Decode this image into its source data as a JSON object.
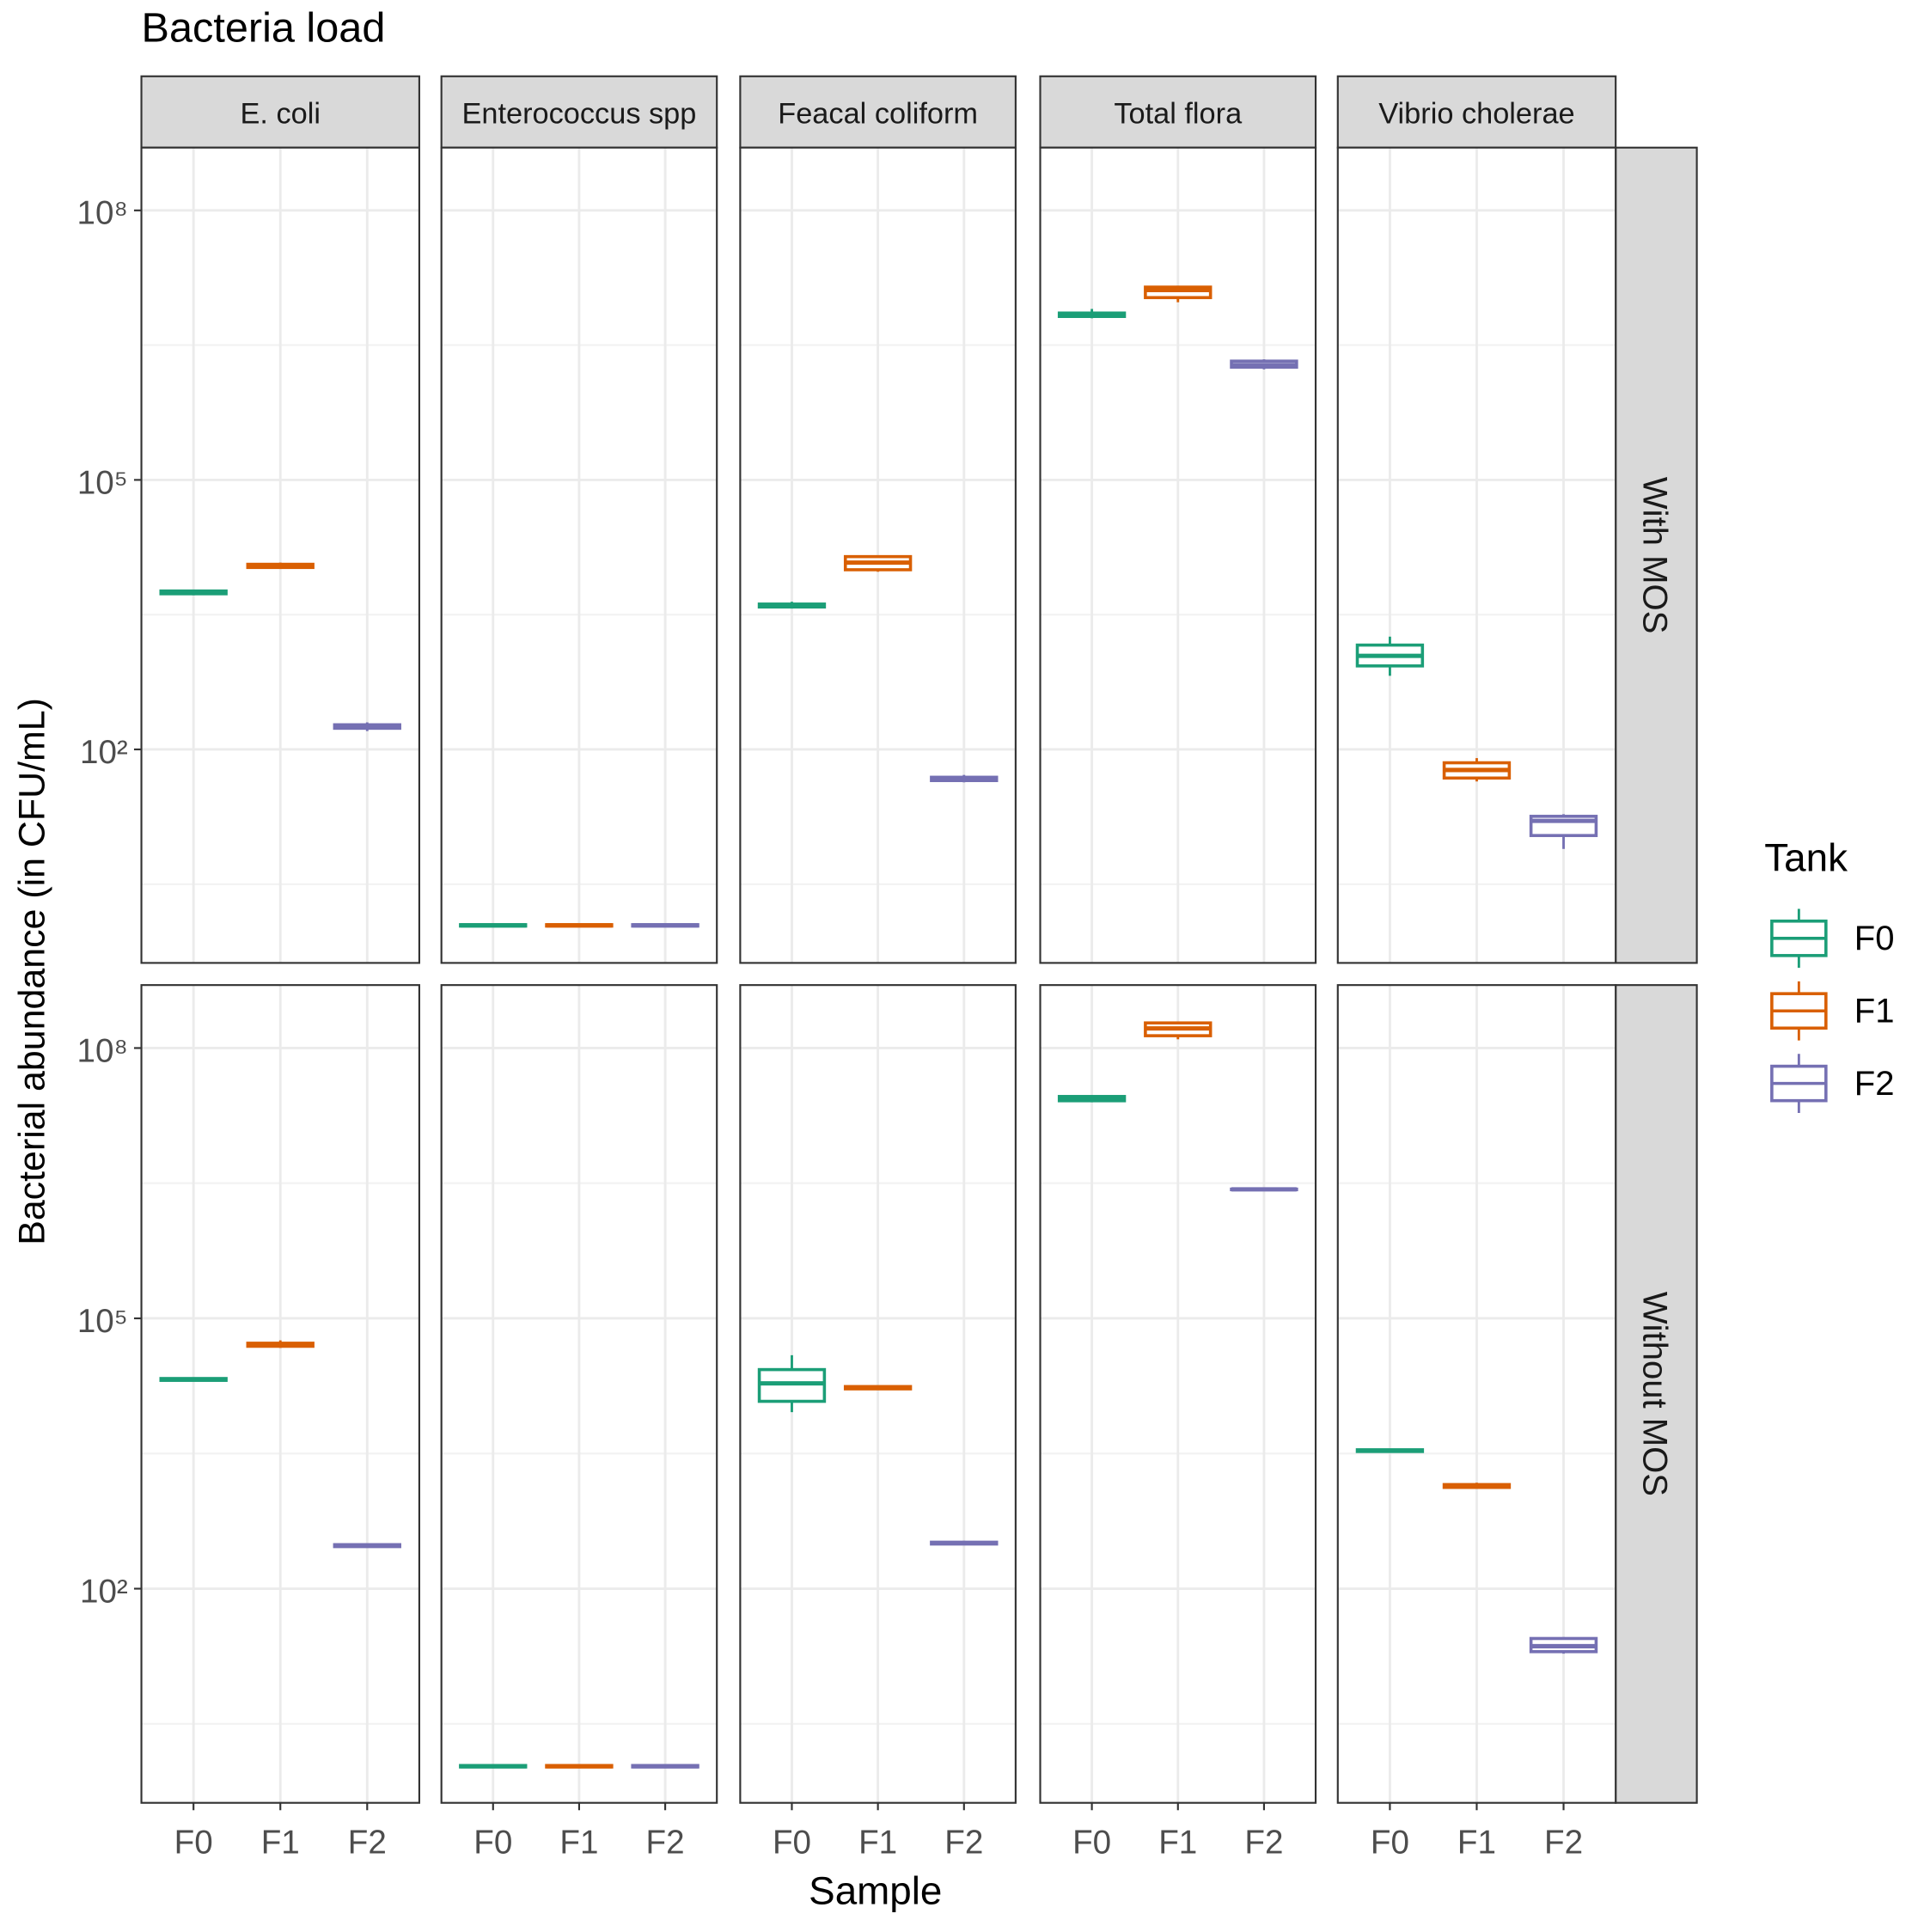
{
  "chart_data": {
    "type": "box",
    "title": "Bacteria load",
    "ylabel": "Bacterial abundance (in CFU/mL)",
    "xlabel": "Sample",
    "legend_title": "Tank",
    "columns": [
      "E. coli",
      "Enterococcus spp",
      "Feacal coliform",
      "Total flora",
      "Vibrio cholerae"
    ],
    "rows": [
      "With MOS",
      "Without MOS"
    ],
    "categories": [
      "F0",
      "F1",
      "F2"
    ],
    "series": [
      {
        "name": "F0",
        "color": "#1b9e77"
      },
      {
        "name": "F1",
        "color": "#d95f02"
      },
      {
        "name": "F2",
        "color": "#7570b3"
      }
    ],
    "log_scale": true,
    "grid": true,
    "legend": "right",
    "ylim": [
      0.42,
      500000000
    ],
    "yticks": [
      {
        "value": 100,
        "label": "10²"
      },
      {
        "value": 100000,
        "label": "10⁵"
      },
      {
        "value": 100000000,
        "label": "10⁸"
      }
    ],
    "yminor": [
      3.16,
      3162,
      3162278
    ],
    "data": [
      [
        [
          [
            5200,
            5400,
            5600,
            5800,
            6000
          ],
          [
            10200,
            10600,
            11000,
            11500,
            12000
          ],
          [
            160,
            172,
            180,
            188,
            200
          ]
        ],
        [
          [
            1.05,
            1.08,
            1.1,
            1.12,
            1.15
          ],
          [
            1.05,
            1.08,
            1.1,
            1.12,
            1.15
          ],
          [
            1.05,
            1.08,
            1.1,
            1.12,
            1.15
          ]
        ],
        [
          [
            3700,
            3850,
            4000,
            4150,
            4400
          ],
          [
            9500,
            10000,
            12000,
            14000,
            14500
          ],
          [
            43,
            45,
            47,
            49,
            52
          ]
        ],
        [
          [
            6300000,
            6600000,
            6900000,
            7200000,
            8000000
          ],
          [
            9500000,
            10700000,
            13000000,
            14000000,
            14500000
          ],
          [
            1700000,
            1800000,
            1900000,
            2100000,
            2200000
          ]
        ],
        [
          [
            660,
            850,
            1100,
            1450,
            1800
          ],
          [
            44,
            48,
            59,
            71,
            80
          ],
          [
            7.8,
            11,
            16,
            18,
            19
          ]
        ]
      ],
      [
        [
          [
            20000,
            20500,
            21000,
            21500,
            22000
          ],
          [
            47000,
            49000,
            51000,
            53000,
            57000
          ],
          [
            285,
            293,
            300,
            308,
            315
          ]
        ],
        [
          [
            1.02,
            1.05,
            1.07,
            1.09,
            1.12
          ],
          [
            1.02,
            1.05,
            1.07,
            1.09,
            1.12
          ],
          [
            1.02,
            1.05,
            1.07,
            1.09,
            1.12
          ]
        ],
        [
          [
            9100,
            12000,
            19000,
            27000,
            39000
          ],
          [
            16000,
            16500,
            17000,
            17500,
            18000
          ],
          [
            305,
            313,
            320,
            328,
            340
          ]
        ],
        [
          [
            25000000,
            26000000,
            27000000,
            29000000,
            30000000
          ],
          [
            125000000,
            137000000,
            165000000,
            190000000,
            195000000
          ],
          [
            2650000,
            2680000,
            2700000,
            2720000,
            2750000
          ]
        ],
        [
          [
            3250,
            3330,
            3400,
            3480,
            3550
          ],
          [
            1280,
            1330,
            1380,
            1430,
            1500
          ],
          [
            19,
            20,
            23,
            28,
            29
          ]
        ]
      ]
    ]
  }
}
